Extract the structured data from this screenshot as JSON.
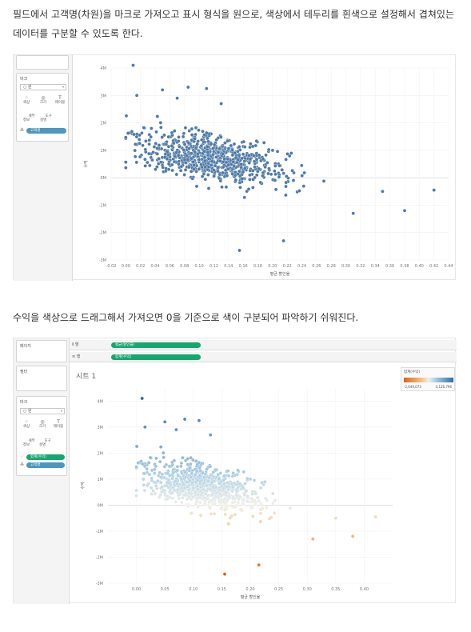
{
  "paragraph1": "필드에서 고객명(차원)을 마크로 가져오고 표시 형식을 원으로, 색상에서 테두리를 흰색으로 설정해서 겹쳐있는 데이터를 구분할 수 있도록 한다.",
  "paragraph2": "수익을 색상으로 드래그해서 가져오면 0을 기준으로 색이 구분되어 파악하기 쉬워진다.",
  "screenshot1": {
    "marks_card": {
      "title": "마크",
      "type_value": "○ 원",
      "buttons": [
        {
          "label": "색상",
          "icon": "⁘"
        },
        {
          "label": "크기",
          "icon": "◎"
        },
        {
          "label": "레이블",
          "icon": "T"
        },
        {
          "label": "세부\n정보",
          "icon": ""
        },
        {
          "label": "도구\n설명",
          "icon": ""
        }
      ],
      "pills": [
        {
          "icon": "⁂",
          "label": "고객명"
        }
      ]
    },
    "chart_data": {
      "type": "scatter",
      "xlabel": "평균 할인율",
      "ylabel": "수익",
      "xlim": [
        -0.02,
        0.44
      ],
      "ylim": [
        -3000000,
        4000000
      ],
      "x_ticks": [
        "-0.02",
        "0.00",
        "0.02",
        "0.04",
        "0.06",
        "0.08",
        "0.10",
        "0.12",
        "0.14",
        "0.16",
        "0.18",
        "0.20",
        "0.22",
        "0.24",
        "0.26",
        "0.28",
        "0.30",
        "0.32",
        "0.34",
        "0.36",
        "0.38",
        "0.40",
        "0.42",
        "0.44"
      ],
      "y_ticks": [
        "4M",
        "3M",
        "2M",
        "1M",
        "0M",
        "-1M",
        "-2M",
        "-3M"
      ],
      "color": "#4e79a7",
      "approx_point_count": 720,
      "points_note_series": "고객명"
    }
  },
  "screenshot2": {
    "shelves": [
      {
        "icon": "⦀",
        "label": "열",
        "pill": "평균(할인율)"
      },
      {
        "icon": "≡",
        "label": "행",
        "pill": "합계(수익)"
      }
    ],
    "side_cards": {
      "pages": "페이지",
      "filters": "필터",
      "marks": "마크"
    },
    "marks_card": {
      "type_value": "○ 원",
      "buttons": [
        {
          "label": "색상",
          "icon": "⁘"
        },
        {
          "label": "크기",
          "icon": "◎"
        },
        {
          "label": "레이블",
          "icon": "T"
        },
        {
          "label": "세부\n정보",
          "icon": ""
        },
        {
          "label": "도구\n설명",
          "icon": ""
        }
      ],
      "pills": [
        {
          "icon": "⁘",
          "label": "합계(수익)",
          "color": "green"
        },
        {
          "icon": "⁂",
          "label": "고객명",
          "color": "blue"
        }
      ]
    },
    "sheet_title": "시트 1",
    "legend": {
      "title": "합계(수익)",
      "min_label": "-2,649,073",
      "max_label": "4,126,796",
      "colors": [
        "#d9661b",
        "#f3c98f",
        "#f0efe9",
        "#a9cde2",
        "#2f6ea3"
      ]
    },
    "chart_data": {
      "type": "scatter",
      "xlabel": "평균 할인율",
      "ylabel": "수익",
      "xlim": [
        -0.05,
        0.45
      ],
      "ylim": [
        -3000000,
        4500000
      ],
      "x_ticks": [
        "0.00",
        "0.05",
        "0.10",
        "0.15",
        "0.20",
        "0.25",
        "0.30",
        "0.35",
        "0.40"
      ],
      "y_ticks": [
        "4M",
        "3M",
        "2M",
        "1M",
        "0M",
        "-1M",
        "-2M",
        "-3M"
      ],
      "color_scale": "diverging at 0: orange (negative) to blue (positive)",
      "approx_point_count": 720
    }
  }
}
